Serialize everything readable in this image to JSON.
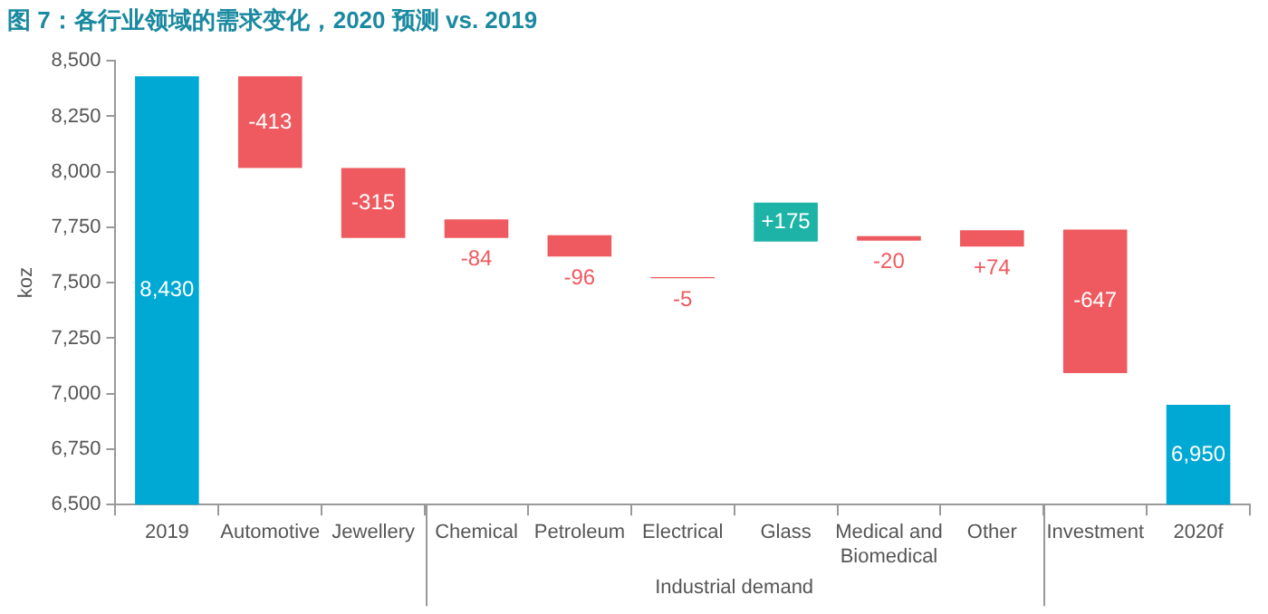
{
  "chart_data": {
    "type": "bar",
    "title": "图 7：各行业领域的需求变化，2020 预测 vs. 2019",
    "ylabel": "koz",
    "categories": [
      "2019",
      "Automotive",
      "Jewellery",
      "Chemical",
      "Petroleum",
      "Electrical",
      "Glass",
      "Medical and Biomedical",
      "Other",
      "Investment",
      "2020f"
    ],
    "values": [
      8430,
      -413,
      -315,
      -84,
      -96,
      -5,
      175,
      -20,
      74,
      -647,
      6950
    ],
    "base": [
      null,
      8430,
      8017,
      7786,
      7714,
      7525,
      7686,
      7710,
      7663,
      7740,
      null
    ],
    "colors": [
      "#00a9d4",
      "#ee5a5f",
      "#ee5a5f",
      "#ee5a5f",
      "#ee5a5f",
      "#ee5a5f",
      "#1db3a6",
      "#ee5a5f",
      "#ee5a5f",
      "#ee5a5f",
      "#00a9d4"
    ],
    "value_labels": [
      "8,430",
      "-413",
      "-315",
      "-84",
      "-96",
      "-5",
      "+175",
      "-20",
      "+74",
      "-647",
      "6,950"
    ],
    "annotations": [
      "Industrial demand"
    ],
    "ylim": [
      6500,
      8500
    ],
    "yticks": [
      {
        "value": 6500,
        "label": "6,500"
      },
      {
        "value": 6750,
        "label": "6,750"
      },
      {
        "value": 7000,
        "label": "7,000"
      },
      {
        "value": 7250,
        "label": "7,250"
      },
      {
        "value": 7500,
        "label": "7,500"
      },
      {
        "value": 7750,
        "label": "7,750"
      },
      {
        "value": 8000,
        "label": "8,000"
      },
      {
        "value": 8250,
        "label": "8,250"
      },
      {
        "value": 8500,
        "label": "8,500"
      }
    ],
    "grid": false,
    "legend": false
  }
}
